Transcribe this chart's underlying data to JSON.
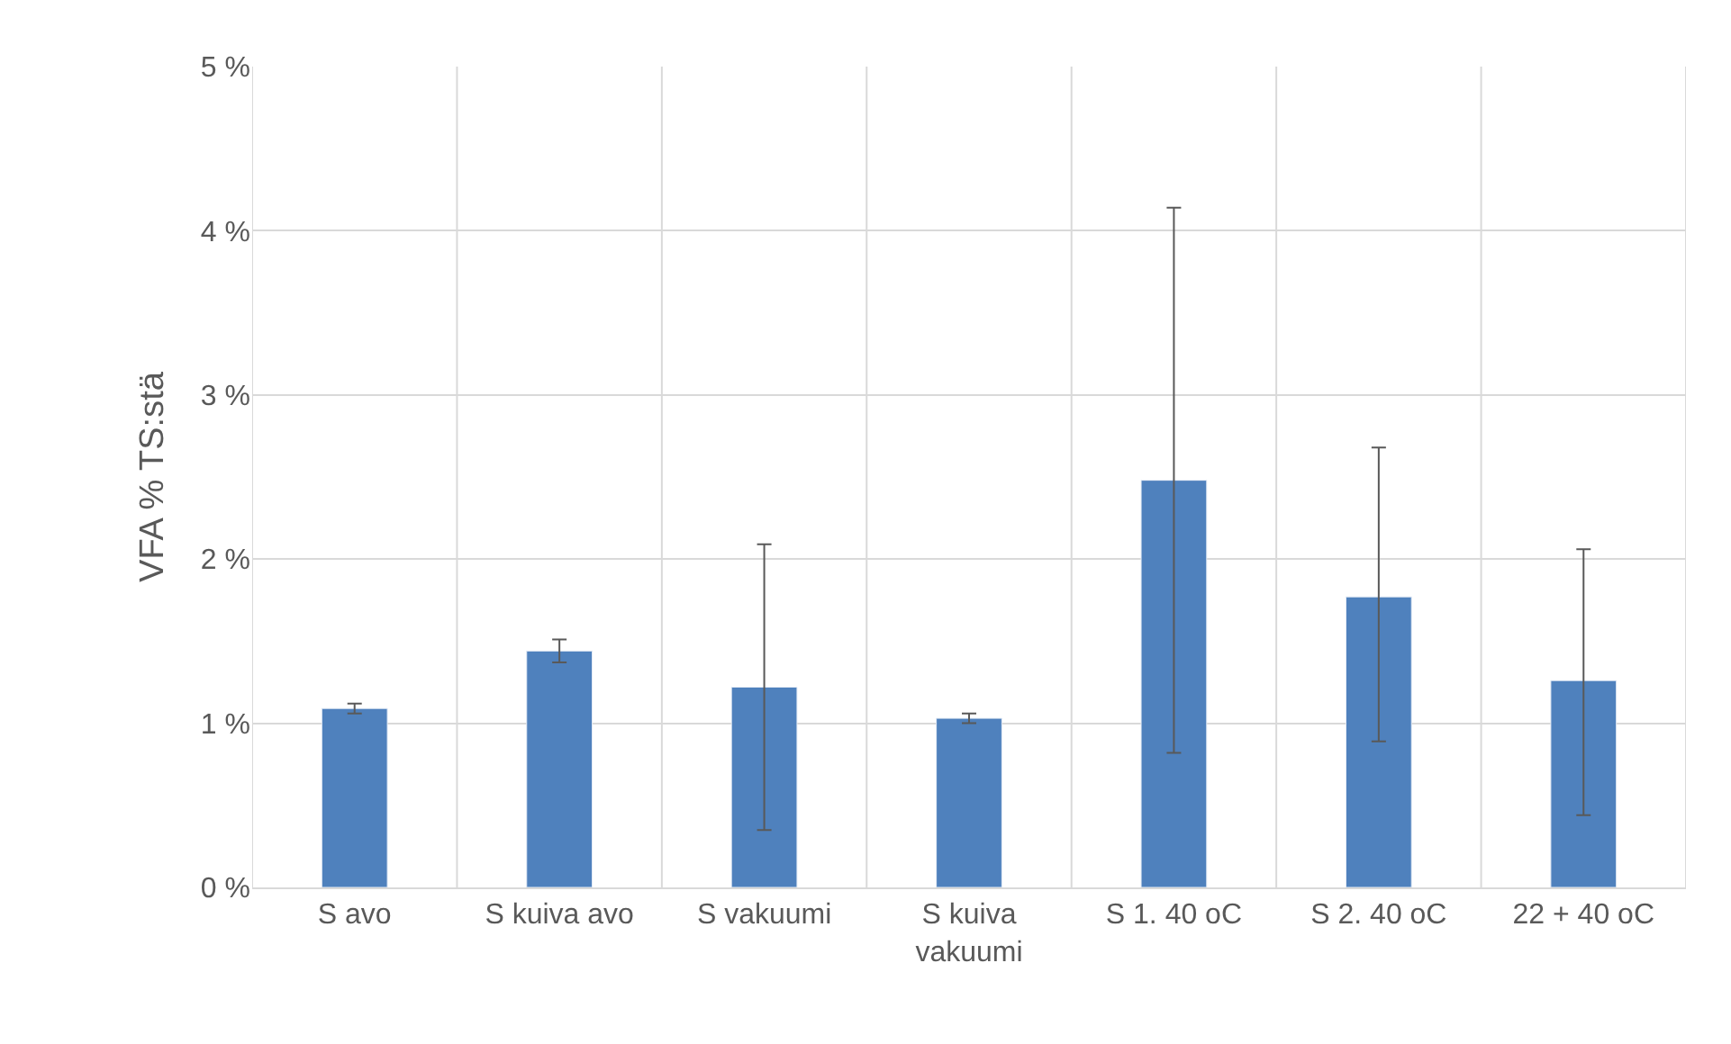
{
  "chart_data": {
    "type": "bar",
    "ylabel": "VFA % TS:stä",
    "categories": [
      "S avo",
      "S kuiva avo",
      "S vakuumi",
      "S kuiva vakuumi",
      "S 1. 40 oC",
      "S 2. 40 oC",
      "22 + 40 oC"
    ],
    "values": [
      1.09,
      1.44,
      1.22,
      1.03,
      2.48,
      1.77,
      1.26
    ],
    "errors": [
      0.03,
      0.07,
      [
        0.35,
        2.09
      ],
      0.03,
      [
        0.82,
        4.14
      ],
      [
        0.89,
        2.68
      ],
      [
        0.44,
        2.06
      ]
    ],
    "color": "#4f81bd",
    "ylim": [
      0,
      5
    ],
    "yticks": [
      {
        "value": 0,
        "label": "0 %"
      },
      {
        "value": 1,
        "label": "1 %"
      },
      {
        "value": 2,
        "label": "2 %"
      },
      {
        "value": 3,
        "label": "3 %"
      },
      {
        "value": 4,
        "label": "4 %"
      },
      {
        "value": 5,
        "label": "5 %"
      }
    ],
    "grid": true
  }
}
